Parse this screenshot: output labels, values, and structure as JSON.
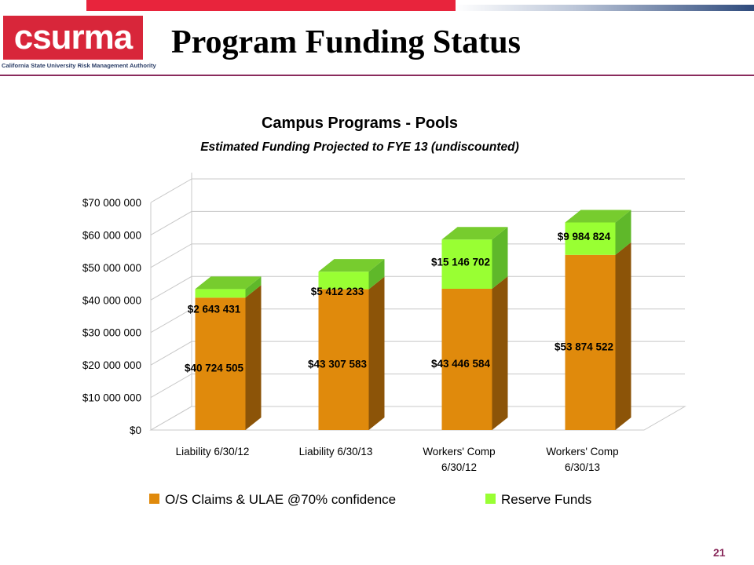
{
  "header": {
    "logo_text": "csurma",
    "logo_subtitle": "California State University Risk Management Authority",
    "title": "Program Funding Status"
  },
  "page_number": "21",
  "chart_data": {
    "type": "bar",
    "stacked": true,
    "three_d": true,
    "title": "Campus Programs - Pools",
    "subtitle": "Estimated Funding Projected to FYE 13 (undiscounted)",
    "categories": [
      [
        "Liability 6/30/12"
      ],
      [
        "Liability 6/30/13"
      ],
      [
        "Workers' Comp",
        "6/30/12"
      ],
      [
        "Workers' Comp",
        "6/30/13"
      ]
    ],
    "series": [
      {
        "name": "O/S Claims & ULAE @70% confidence",
        "color": "#e08a0c",
        "values": [
          40724505,
          43307583,
          43446584,
          53874522
        ],
        "labels": [
          "$40 724 505",
          "$43 307 583",
          "$43 446 584",
          "$53 874 522"
        ]
      },
      {
        "name": "Reserve Funds",
        "color": "#99ff33",
        "values": [
          2643431,
          5412233,
          15146702,
          9984824
        ],
        "labels": [
          "$2 643 431",
          "$5 412 233",
          "$15 146 702",
          "$9 984 824"
        ]
      }
    ],
    "yticks": [
      "$0",
      "$10 000 000",
      "$20 000 000",
      "$30 000 000",
      "$40 000 000",
      "$50 000 000",
      "$60 000 000",
      "$70 000 000"
    ],
    "ylim": [
      0,
      70000000
    ],
    "grid": true,
    "legend_position": "bottom"
  },
  "colors": {
    "accent_red": "#e8243c",
    "title_rule": "#8a2b5c",
    "navy": "#2e4a7c"
  }
}
